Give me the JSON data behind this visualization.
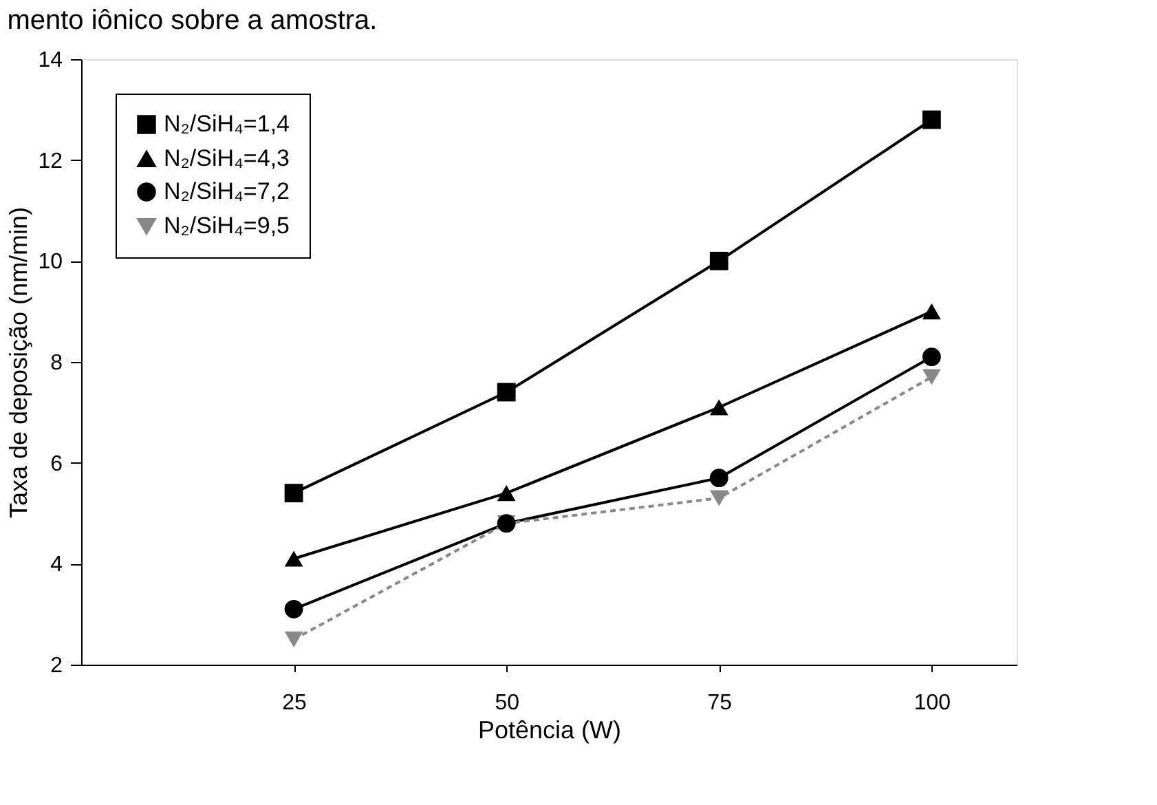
{
  "chart_data": {
    "type": "line",
    "xlabel": "Potência (W)",
    "ylabel": "Taxa de deposição (nm/min)",
    "annotations": [
      "mento iônico sobre a amostra."
    ],
    "x": [
      25,
      50,
      75,
      100
    ],
    "series": [
      {
        "name": "N₂/SiH₄=1,4",
        "color": "#000000",
        "marker": "square",
        "line_style": "solid",
        "values": [
          5.4,
          7.4,
          10.0,
          12.8
        ]
      },
      {
        "name": "N₂/SiH₄=4,3",
        "color": "#000000",
        "marker": "triangle",
        "line_style": "solid",
        "values": [
          4.1,
          5.4,
          7.1,
          9.0
        ]
      },
      {
        "name": "N₂/SiH₄=7,2",
        "color": "#000000",
        "marker": "circle",
        "line_style": "solid",
        "values": [
          3.1,
          4.8,
          5.7,
          8.1
        ]
      },
      {
        "name": "N₂/SiH₄=9,5",
        "color": "#888888",
        "marker": "triangle-down",
        "line_style": "dashed",
        "values": [
          2.5,
          4.8,
          5.3,
          7.7
        ]
      }
    ],
    "xlim": [
      0,
      110
    ],
    "xticks": [
      25,
      50,
      75,
      100
    ],
    "ylim": [
      2,
      14
    ],
    "yticks": [
      2,
      4,
      6,
      8,
      10,
      12,
      14
    ],
    "grid": false,
    "legend": "top left"
  }
}
